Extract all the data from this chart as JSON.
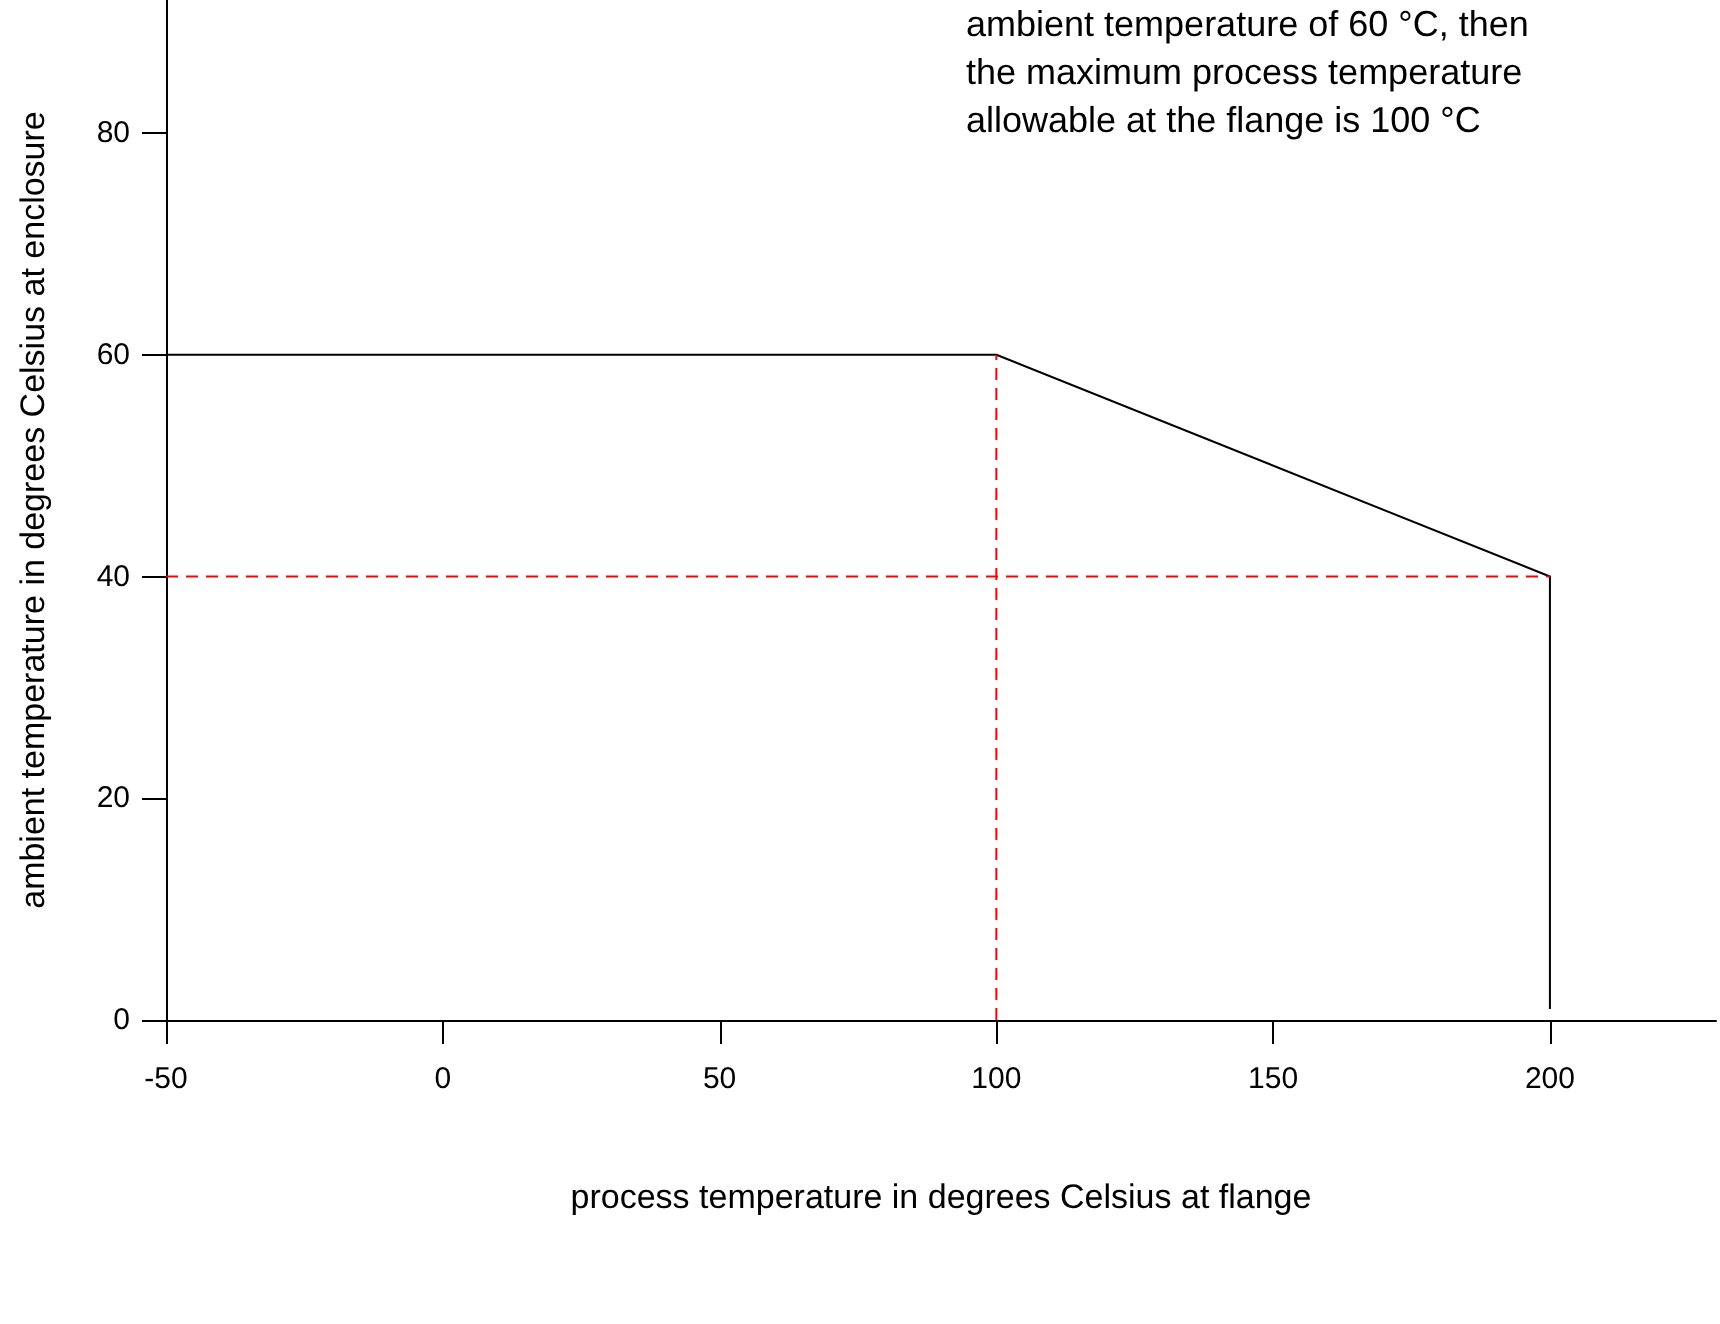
{
  "chart_data": {
    "type": "line",
    "xlabel": "process temperature in degrees Celsius at flange",
    "ylabel": "ambient temperature in degrees Celsius at enclosure",
    "annotations": [
      "ambient temperature of 60 °C, then\nthe maximum process temperature\nallowable at the flange is 100 °C"
    ],
    "xlim": [
      -50,
      230
    ],
    "xticks": [
      -50,
      0,
      50,
      100,
      150,
      200
    ],
    "ylim": [
      0,
      92
    ],
    "yticks": [
      0,
      20,
      40,
      60,
      80
    ],
    "marker": "none",
    "grid": false,
    "series": [
      {
        "color": "#000000",
        "line_style": "solid",
        "x": [
          -50,
          100,
          200,
          200
        ],
        "values": [
          60,
          60,
          40,
          1
        ]
      },
      {
        "color": "#ff0000",
        "line_style": "dashed",
        "x": [
          -50,
          200
        ],
        "values": [
          40,
          40
        ]
      },
      {
        "color": "#ff0000",
        "line_style": "dashed",
        "x": [
          100,
          100
        ],
        "values": [
          0,
          60
        ]
      }
    ]
  }
}
